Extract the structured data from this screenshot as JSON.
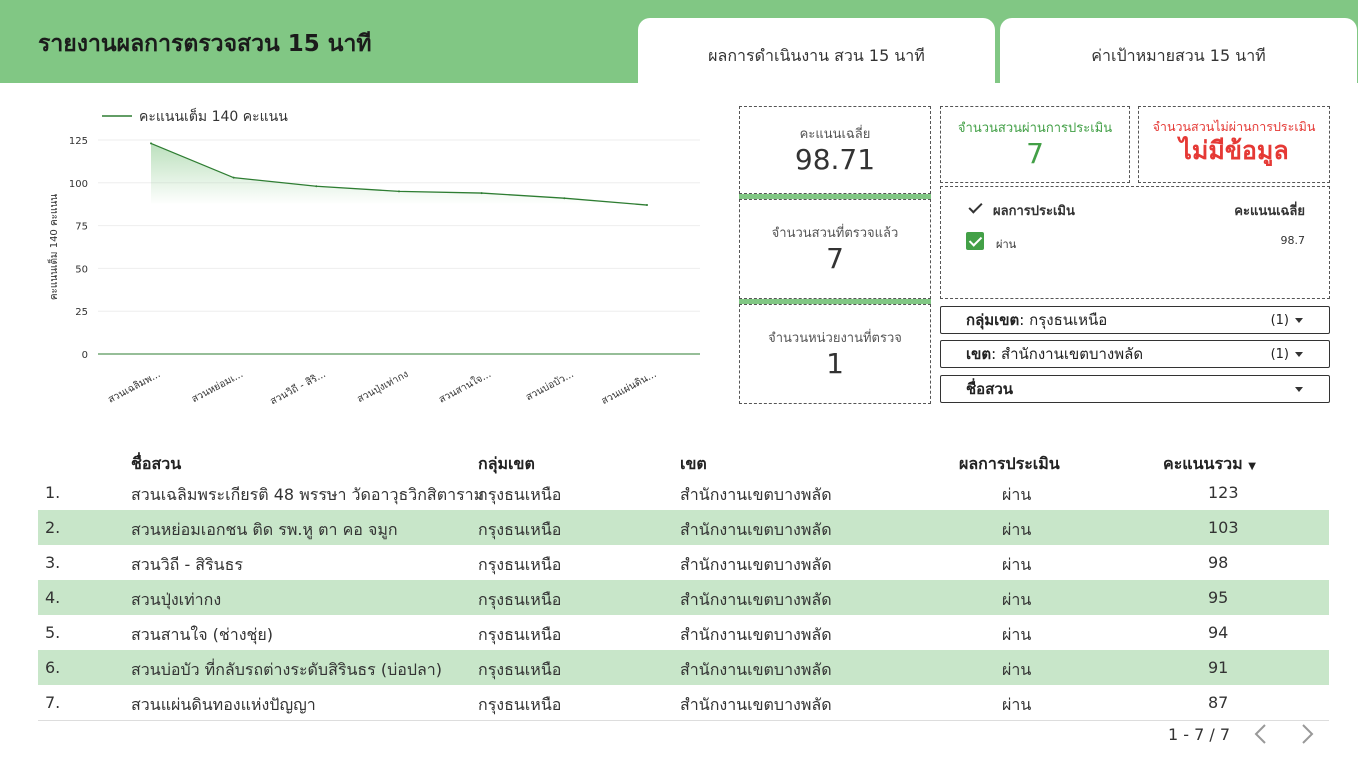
{
  "header": {
    "title": "รายงานผลการตรวจสวน 15 นาที",
    "tabs": [
      "ผลการดำเนินงาน สวน 15 นาที",
      "ค่าเป้าหมายสวน 15 นาที"
    ]
  },
  "colors": {
    "brand_green": "#81c784",
    "line_green": "#2e7d32",
    "pass_green": "#43a047",
    "fail_red": "#e53935",
    "row_alt": "#c8e6c9"
  },
  "chart_data": {
    "type": "line",
    "legend": "คะแนนเต็ม 140 คะแนน",
    "legend_position": "top-left",
    "ylabel": "คะแนนเต็ม 140 คะแนน",
    "xlabel": "",
    "ylim": [
      0,
      125
    ],
    "yticks": [
      "0",
      "25",
      "50",
      "75",
      "100",
      "125"
    ],
    "categories": [
      "สวนเฉลิมพ...",
      "สวนหย่อมเ...",
      "สวนวิถี - สิริ...",
      "สวนปุ่งเท่ากง",
      "สวนสานใจ...",
      "สวนบ่อบัว...",
      "สวนแผ่นดิน..."
    ],
    "series": [
      {
        "name": "คะแนนเต็ม 140 คะแนน",
        "values": [
          123,
          103,
          98,
          95,
          94,
          91,
          87
        ]
      }
    ],
    "grid": true
  },
  "scorecards": {
    "avg": {
      "label": "คะแนนเฉลี่ย",
      "value": "98.71"
    },
    "passed": {
      "label": "จำนวนสวนผ่านการประเมิน",
      "value": "7"
    },
    "failed": {
      "label": "จำนวนสวนไม่ผ่านการประเมิน",
      "value": "ไม่มีข้อมูล"
    },
    "checked": {
      "label": "จำนวนสวนที่ตรวจแล้ว",
      "value": "7"
    },
    "units": {
      "label": "จำนวนหน่วยงานที่ตรวจ",
      "value": "1"
    }
  },
  "result_table": {
    "headers": [
      "ผลการประเมิน",
      "คะแนนเฉลี่ย"
    ],
    "rows": [
      {
        "result": "ผ่าน",
        "avg": "98.7"
      }
    ]
  },
  "filters": [
    {
      "label": "กลุ่มเขต",
      "value": ": กรุงธนเหนือ",
      "count": "(1)"
    },
    {
      "label": "เขต",
      "value": ": สำนักงานเขตบางพลัด",
      "count": "(1)"
    },
    {
      "label": "ชื่อสวน",
      "value": "",
      "count": ""
    }
  ],
  "table": {
    "headers": [
      "ชื่อสวน",
      "กลุ่มเขต",
      "เขต",
      "ผลการประเมิน",
      "คะแนนรวม"
    ],
    "sort_indicator": "▼",
    "rows": [
      {
        "num": "1.",
        "name": "สวนเฉลิมพระเกียรติ 48 พรรษา วัดอาวุธวิกสิตาราม",
        "group": "กรุงธนเหนือ",
        "district": "สำนักงานเขตบางพลัด",
        "result": "ผ่าน",
        "score": "123"
      },
      {
        "num": "2.",
        "name": "สวนหย่อมเอกชน ติด รพ.หู ตา คอ จมูก",
        "group": "กรุงธนเหนือ",
        "district": "สำนักงานเขตบางพลัด",
        "result": "ผ่าน",
        "score": "103"
      },
      {
        "num": "3.",
        "name": "สวนวิถี - สิรินธร",
        "group": "กรุงธนเหนือ",
        "district": "สำนักงานเขตบางพลัด",
        "result": "ผ่าน",
        "score": "98"
      },
      {
        "num": "4.",
        "name": "สวนปุ่งเท่ากง",
        "group": "กรุงธนเหนือ",
        "district": "สำนักงานเขตบางพลัด",
        "result": "ผ่าน",
        "score": "95"
      },
      {
        "num": "5.",
        "name": "สวนสานใจ (ช่างชุ่ย)",
        "group": "กรุงธนเหนือ",
        "district": "สำนักงานเขตบางพลัด",
        "result": "ผ่าน",
        "score": "94"
      },
      {
        "num": "6.",
        "name": "สวนบ่อบัว ที่กลับรถต่างระดับสิรินธร (บ่อปลา)",
        "group": "กรุงธนเหนือ",
        "district": "สำนักงานเขตบางพลัด",
        "result": "ผ่าน",
        "score": "91"
      },
      {
        "num": "7.",
        "name": "สวนแผ่นดินทองแห่งปัญญา",
        "group": "กรุงธนเหนือ",
        "district": "สำนักงานเขตบางพลัด",
        "result": "ผ่าน",
        "score": "87"
      }
    ],
    "pagination": "1 - 7 / 7"
  }
}
